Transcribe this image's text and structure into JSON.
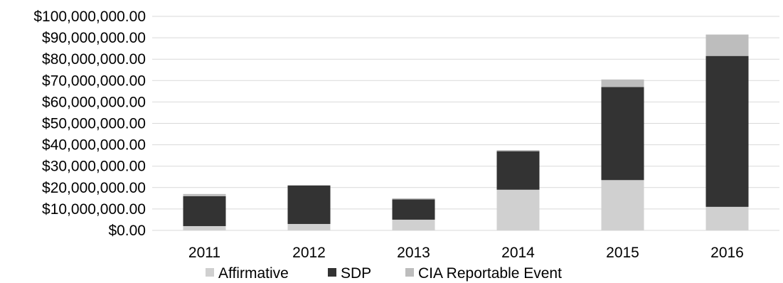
{
  "chart_data": {
    "type": "bar",
    "stacked": true,
    "title": "",
    "xlabel": "",
    "ylabel": "",
    "categories": [
      "2011",
      "2012",
      "2013",
      "2014",
      "2015",
      "2016"
    ],
    "series": [
      {
        "name": "Affirmative",
        "color": "#d0d0d0",
        "values": [
          2000000,
          3000000,
          5000000,
          19000000,
          23500000,
          11000000
        ]
      },
      {
        "name": "SDP",
        "color": "#333333",
        "values": [
          14000000,
          18000000,
          9500000,
          18000000,
          43500000,
          70500000
        ]
      },
      {
        "name": "CIA Reportable Event",
        "color": "#bdbdbd",
        "values": [
          1000000,
          0,
          500000,
          500000,
          3500000,
          10000000
        ]
      }
    ],
    "ylim": [
      0,
      100000000
    ],
    "y_ticks": [
      "$0.00",
      "$10,000,000.00",
      "$20,000,000.00",
      "$30,000,000.00",
      "$40,000,000.00",
      "$50,000,000.00",
      "$60,000,000.00",
      "$70,000,000.00",
      "$80,000,000.00",
      "$90,000,000.00",
      "$100,000,000.00"
    ],
    "grid": true,
    "legend_position": "bottom"
  }
}
